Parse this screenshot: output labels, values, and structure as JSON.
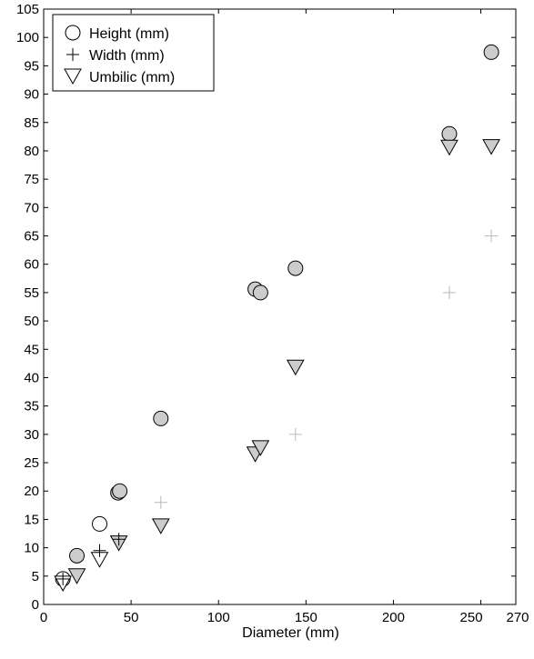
{
  "chart_data": {
    "type": "scatter",
    "xlabel": "Diameter (mm)",
    "ylabel": "",
    "xlim": [
      0,
      270
    ],
    "ylim": [
      0,
      105
    ],
    "x_ticks": [
      0,
      50,
      100,
      150,
      200,
      250,
      270
    ],
    "y_ticks": [
      0,
      5,
      10,
      15,
      20,
      25,
      30,
      35,
      40,
      45,
      50,
      55,
      60,
      65,
      70,
      75,
      80,
      85,
      90,
      95,
      100,
      105
    ],
    "grid": false,
    "legend_position": "top-left",
    "series": [
      {
        "name": "Height (mm)",
        "marker": "circle",
        "points": [
          {
            "x": 11,
            "y": 4.5,
            "filled": false
          },
          {
            "x": 19,
            "y": 8.6,
            "filled": true
          },
          {
            "x": 32,
            "y": 14.2,
            "filled": false
          },
          {
            "x": 42.5,
            "y": 19.7,
            "filled": true
          },
          {
            "x": 43.5,
            "y": 20.0,
            "filled": true
          },
          {
            "x": 67,
            "y": 32.8,
            "filled": true
          },
          {
            "x": 121,
            "y": 55.6,
            "filled": true
          },
          {
            "x": 124,
            "y": 55.0,
            "filled": true
          },
          {
            "x": 144,
            "y": 59.3,
            "filled": true
          },
          {
            "x": 232,
            "y": 83.0,
            "filled": true
          },
          {
            "x": 256,
            "y": 97.4,
            "filled": true
          }
        ]
      },
      {
        "name": "Width (mm)",
        "marker": "plus",
        "points": [
          {
            "x": 11,
            "y": 4.5,
            "faded": false
          },
          {
            "x": 32,
            "y": 9.5,
            "faded": false
          },
          {
            "x": 43,
            "y": 11.5,
            "faded": false
          },
          {
            "x": 67,
            "y": 18.0,
            "faded": true
          },
          {
            "x": 144,
            "y": 30.0,
            "faded": true
          },
          {
            "x": 232,
            "y": 55.0,
            "faded": true
          },
          {
            "x": 256,
            "y": 65.0,
            "faded": true
          }
        ]
      },
      {
        "name": "Umbilic (mm)",
        "marker": "triangle-down",
        "points": [
          {
            "x": 11,
            "y": 3.7,
            "filled": false
          },
          {
            "x": 19,
            "y": 5.0,
            "filled": true
          },
          {
            "x": 32,
            "y": 7.9,
            "filled": false
          },
          {
            "x": 43,
            "y": 10.8,
            "filled": true
          },
          {
            "x": 67,
            "y": 13.8,
            "filled": true
          },
          {
            "x": 121,
            "y": 26.5,
            "filled": true
          },
          {
            "x": 124,
            "y": 27.6,
            "filled": true
          },
          {
            "x": 144,
            "y": 41.8,
            "filled": true
          },
          {
            "x": 232,
            "y": 80.6,
            "filled": true
          },
          {
            "x": 256,
            "y": 80.7,
            "filled": true
          }
        ]
      }
    ]
  }
}
